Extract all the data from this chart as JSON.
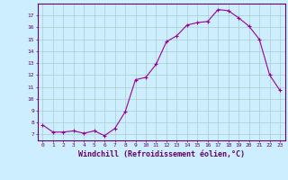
{
  "x": [
    0,
    1,
    2,
    3,
    4,
    5,
    6,
    7,
    8,
    9,
    10,
    11,
    12,
    13,
    14,
    15,
    16,
    17,
    18,
    19,
    20,
    21,
    22,
    23
  ],
  "y": [
    7.8,
    7.2,
    7.2,
    7.3,
    7.1,
    7.3,
    6.9,
    7.5,
    8.9,
    11.6,
    11.8,
    12.9,
    14.8,
    15.3,
    16.2,
    16.4,
    16.5,
    17.5,
    17.4,
    16.8,
    16.1,
    15.0,
    12.0,
    10.7
  ],
  "line_color": "#990099",
  "marker": "+",
  "marker_size": 3,
  "bg_color": "#cceeff",
  "grid_color": "#aacccc",
  "axis_color": "#660066",
  "tick_color": "#660066",
  "xlabel": "Windchill (Refroidissement éolien,°C)",
  "xlabel_fontsize": 6.0,
  "ylim": [
    6.5,
    18.0
  ],
  "xlim": [
    -0.5,
    23.5
  ],
  "yticks": [
    7,
    8,
    9,
    10,
    11,
    12,
    13,
    14,
    15,
    16,
    17
  ],
  "xticks": [
    0,
    1,
    2,
    3,
    4,
    5,
    6,
    7,
    8,
    9,
    10,
    11,
    12,
    13,
    14,
    15,
    16,
    17,
    18,
    19,
    20,
    21,
    22,
    23
  ]
}
